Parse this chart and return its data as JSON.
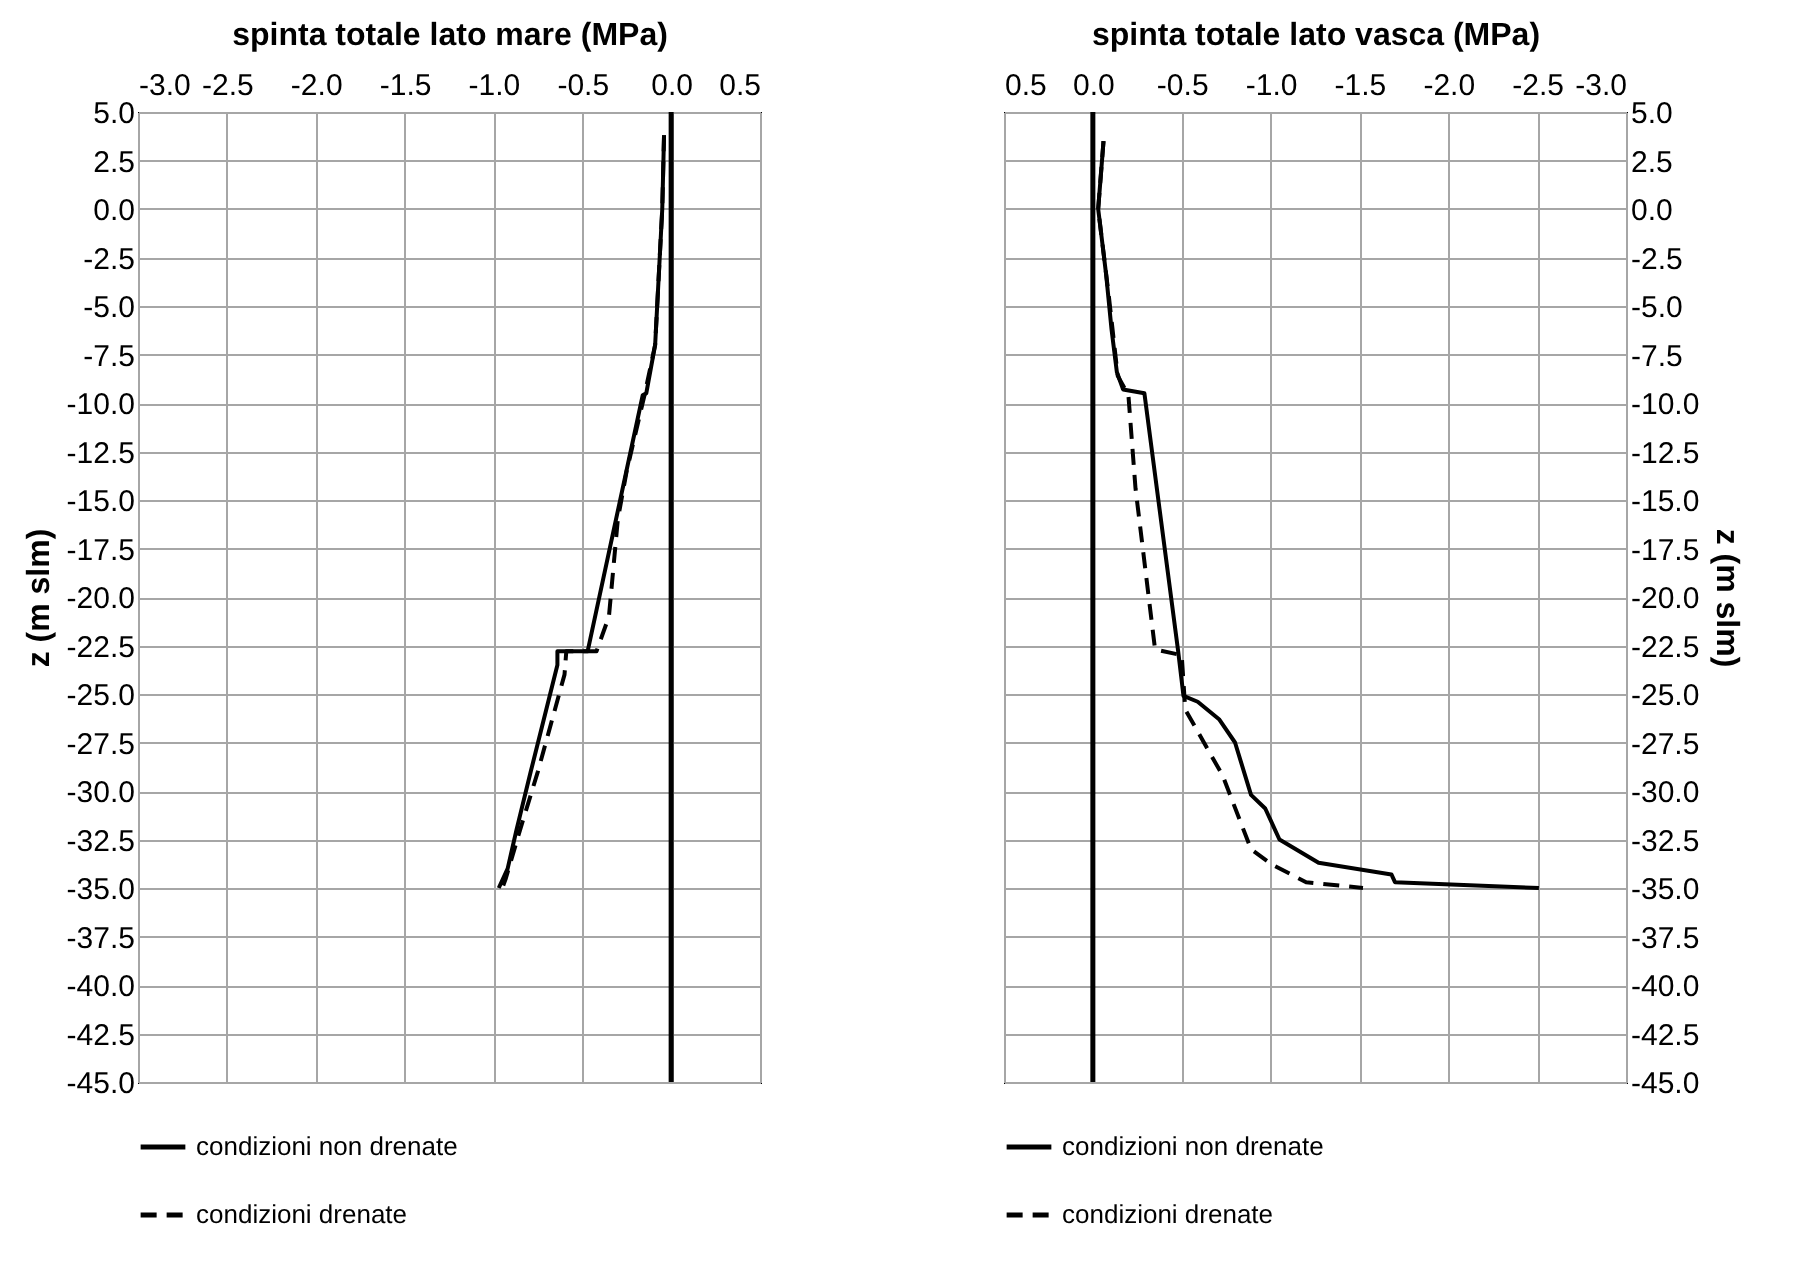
{
  "chart_data": [
    {
      "type": "line",
      "xlabel": "spinta totale lato mare (MPa)",
      "ylabel": "z  (m slm)",
      "xlim": [
        -3.0,
        0.5
      ],
      "xticks": [
        {
          "value": -3,
          "label": "-3.0"
        },
        {
          "value": -2.5,
          "label": "-2.5"
        },
        {
          "value": -2,
          "label": "-2.0"
        },
        {
          "value": -1.5,
          "label": "-1.5"
        },
        {
          "value": -1,
          "label": "-1.0"
        },
        {
          "value": -0.5,
          "label": "-0.5"
        },
        {
          "value": 0,
          "label": "0.0"
        },
        {
          "value": 0.5,
          "label": "0.5"
        }
      ],
      "ylim": [
        -45,
        5
      ],
      "yticks": [
        {
          "value": 5,
          "label": "5.0"
        },
        {
          "value": 2.5,
          "label": "2.5"
        },
        {
          "value": 0,
          "label": "0.0"
        },
        {
          "value": -2.5,
          "label": "-2.5"
        },
        {
          "value": -5,
          "label": "-5.0"
        },
        {
          "value": -7.5,
          "label": "-7.5"
        },
        {
          "value": -10,
          "label": "-10.0"
        },
        {
          "value": -12.5,
          "label": "-12.5"
        },
        {
          "value": -15,
          "label": "-15.0"
        },
        {
          "value": -17.5,
          "label": "-17.5"
        },
        {
          "value": -20,
          "label": "-20.0"
        },
        {
          "value": -22.5,
          "label": "-22.5"
        },
        {
          "value": -25,
          "label": "-25.0"
        },
        {
          "value": -27.5,
          "label": "-27.5"
        },
        {
          "value": -30,
          "label": "-30.0"
        },
        {
          "value": -32.5,
          "label": "-32.5"
        },
        {
          "value": -35,
          "label": "-35.0"
        },
        {
          "value": -37.5,
          "label": "-37.5"
        },
        {
          "value": -40,
          "label": "-40.0"
        },
        {
          "value": -42.5,
          "label": "-42.5"
        },
        {
          "value": -45,
          "label": "-45.0"
        }
      ],
      "grid": true,
      "legend": "bottom",
      "marker": "none",
      "ref_lines": [
        {
          "axis": "x",
          "value": 0,
          "color": "#000000"
        }
      ],
      "series": [
        {
          "name": "condizioni non drenate",
          "color": "#000000",
          "line_style": "solid",
          "x": [
            -0.04,
            -0.05,
            -0.09,
            -0.14,
            -0.16,
            -0.47,
            -0.64,
            -0.64,
            -0.79,
            -0.87,
            -0.92,
            -0.97
          ],
          "values": [
            3.8,
            0,
            -7,
            -9.5,
            -9.6,
            -22.8,
            -22.8,
            -23.5,
            -29,
            -32,
            -34,
            -35
          ]
        },
        {
          "name": "condizioni drenate",
          "color": "#000000",
          "line_style": "dashed",
          "x": [
            -0.04,
            -0.05,
            -0.09,
            -0.15,
            -0.25,
            -0.3,
            -0.33,
            -0.35,
            -0.42,
            -0.59,
            -0.6,
            -0.75,
            -0.85,
            -0.93,
            -0.95
          ],
          "values": [
            3.8,
            0,
            -7,
            -9.6,
            -13.5,
            -16,
            -19,
            -21,
            -22.8,
            -22.8,
            -24,
            -29,
            -32,
            -34.5,
            -35
          ]
        }
      ]
    },
    {
      "type": "line",
      "xlabel": "spinta totale lato vasca (MPa)",
      "ylabel": "z  (m slm)",
      "xlim": [
        0.5,
        -3.0
      ],
      "xticks": [
        {
          "value": 0.5,
          "label": "0.5"
        },
        {
          "value": 0,
          "label": "0.0"
        },
        {
          "value": -0.5,
          "label": "-0.5"
        },
        {
          "value": -1,
          "label": "-1.0"
        },
        {
          "value": -1.5,
          "label": "-1.5"
        },
        {
          "value": -2,
          "label": "-2.0"
        },
        {
          "value": -2.5,
          "label": "-2.5"
        },
        {
          "value": -3,
          "label": "-3.0"
        }
      ],
      "ylim": [
        -45,
        5
      ],
      "yticks": [
        {
          "value": 5,
          "label": "5.0"
        },
        {
          "value": 2.5,
          "label": "2.5"
        },
        {
          "value": 0,
          "label": "0.0"
        },
        {
          "value": -2.5,
          "label": "-2.5"
        },
        {
          "value": -5,
          "label": "-5.0"
        },
        {
          "value": -7.5,
          "label": "-7.5"
        },
        {
          "value": -10,
          "label": "-10.0"
        },
        {
          "value": -12.5,
          "label": "-12.5"
        },
        {
          "value": -15,
          "label": "-15.0"
        },
        {
          "value": -17.5,
          "label": "-17.5"
        },
        {
          "value": -20,
          "label": "-20.0"
        },
        {
          "value": -22.5,
          "label": "-22.5"
        },
        {
          "value": -25,
          "label": "-25.0"
        },
        {
          "value": -27.5,
          "label": "-27.5"
        },
        {
          "value": -30,
          "label": "-30.0"
        },
        {
          "value": -32.5,
          "label": "-32.5"
        },
        {
          "value": -35,
          "label": "-35.0"
        },
        {
          "value": -37.5,
          "label": "-37.5"
        },
        {
          "value": -40,
          "label": "-40.0"
        },
        {
          "value": -42.5,
          "label": "-42.5"
        },
        {
          "value": -45,
          "label": "-45.0"
        }
      ],
      "grid": true,
      "legend": "bottom",
      "marker": "none",
      "ref_lines": [
        {
          "axis": "x",
          "value": 0,
          "color": "#000000"
        }
      ],
      "series": [
        {
          "name": "condizioni non drenate",
          "color": "#000000",
          "line_style": "solid",
          "x": [
            -0.06,
            -0.03,
            -0.075,
            -0.105,
            -0.135,
            -0.17,
            -0.29,
            -0.48,
            -0.51,
            -0.59,
            -0.71,
            -0.8,
            -0.89,
            -0.97,
            -1.05,
            -1.27,
            -1.68,
            -1.7,
            -2.51
          ],
          "values": [
            3.5,
            0,
            -3.4,
            -6.2,
            -8.4,
            -9.3,
            -9.5,
            -22.8,
            -25.1,
            -25.4,
            -26.3,
            -27.5,
            -30.2,
            -30.9,
            -32.5,
            -33.7,
            -34.3,
            -34.7,
            -35
          ]
        },
        {
          "name": "condizioni drenate",
          "color": "#000000",
          "line_style": "dashed",
          "x": [
            -0.06,
            -0.03,
            -0.09,
            -0.14,
            -0.2,
            -0.24,
            -0.35,
            -0.5,
            -0.52,
            -0.73,
            -0.89,
            -1.01,
            -1.2,
            -1.52
          ],
          "values": [
            3.5,
            0,
            -4.5,
            -8.6,
            -9.6,
            -14.4,
            -22.7,
            -23,
            -25.8,
            -29.2,
            -33,
            -33.8,
            -34.7,
            -35
          ]
        }
      ]
    }
  ]
}
